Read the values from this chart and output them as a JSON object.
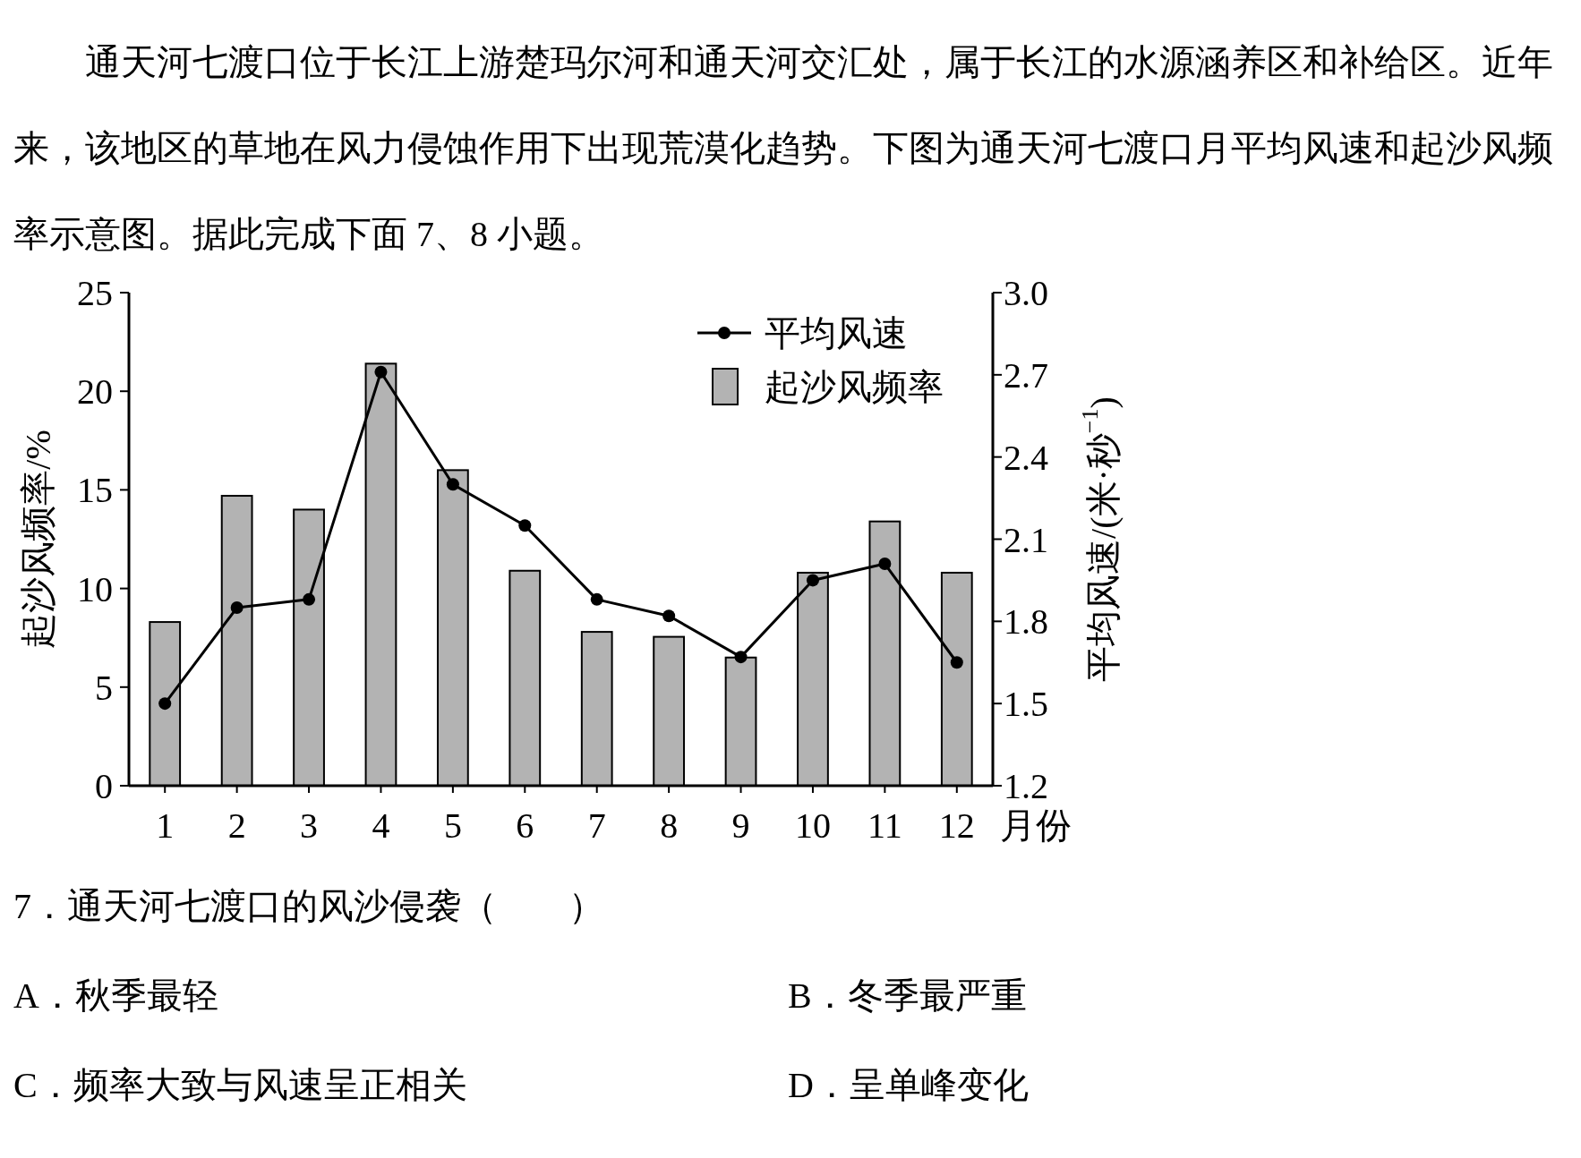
{
  "chart_data": {
    "type": "bar",
    "title": "通天河七渡口位于长江上游楚玛尔河和通天河交汇处，属于长江的水源涵养区和补给区。近年来，该地区的草地在风力侵蚀作用下出现荒漠化趋势。下图为通天河七渡口月平均风速和起沙风频率示意图。据此完成下面 7、8 小题。",
    "xlabel": "月份",
    "ylabel": "起沙风频率/%",
    "y2label": "平均风速/(米·秒$^{−1}$)",
    "categories": [
      "1",
      "2",
      "3",
      "4",
      "5",
      "6",
      "7",
      "8",
      "9",
      "10",
      "11",
      "12"
    ],
    "series": [
      {
        "name": "平均风速",
        "type": "line",
        "axis": "y2",
        "color": "#000000",
        "values": [
          1.5,
          1.85,
          1.88,
          2.71,
          2.3,
          2.15,
          1.88,
          1.82,
          1.67,
          1.95,
          2.01,
          1.65
        ]
      },
      {
        "name": "起沙风频率",
        "color": "#b3b3b3",
        "values": [
          8.3,
          14.7,
          14.0,
          21.4,
          16.0,
          10.9,
          7.8,
          7.55,
          6.5,
          10.8,
          13.4,
          10.8
        ]
      }
    ],
    "ylim": [
      0,
      25
    ],
    "yticks": [
      0,
      5,
      10,
      15,
      20,
      25
    ],
    "y2lim": [
      1.2,
      3.0
    ],
    "y2ticks": [
      1.2,
      1.5,
      1.8,
      2.1,
      2.4,
      2.7,
      {
        "value": 3.0,
        "label": "3.0"
      }
    ],
    "marker": "circle",
    "legend": "top right",
    "annotations": [
      "7．通天河七渡口的风沙侵袭（　　）",
      "A．秋季最轻",
      "B．冬季最严重",
      "C．频率大致与风速呈正相关",
      "D．呈单峰变化"
    ]
  }
}
